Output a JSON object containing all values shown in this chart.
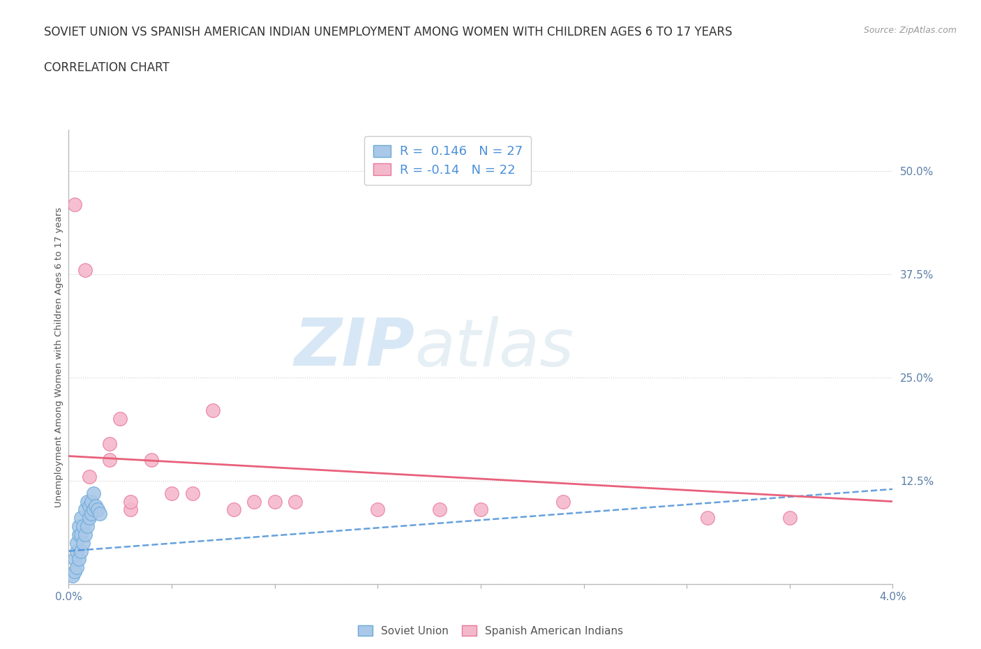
{
  "title_line1": "SOVIET UNION VS SPANISH AMERICAN INDIAN UNEMPLOYMENT AMONG WOMEN WITH CHILDREN AGES 6 TO 17 YEARS",
  "title_line2": "CORRELATION CHART",
  "source": "Source: ZipAtlas.com",
  "ylabel": "Unemployment Among Women with Children Ages 6 to 17 years",
  "xlim": [
    0.0,
    0.04
  ],
  "ylim": [
    0.0,
    0.55
  ],
  "xticks": [
    0.0,
    0.005,
    0.01,
    0.015,
    0.02,
    0.025,
    0.03,
    0.035,
    0.04
  ],
  "xticklabels": [
    "0.0%",
    "",
    "",
    "",
    "",
    "",
    "",
    "",
    "4.0%"
  ],
  "ytick_positions": [
    0.0,
    0.125,
    0.25,
    0.375,
    0.5
  ],
  "ytick_labels": [
    "",
    "12.5%",
    "25.0%",
    "37.5%",
    "50.0%"
  ],
  "grid_color": "#cccccc",
  "background_color": "#ffffff",
  "watermark_zip": "ZIP",
  "watermark_atlas": "atlas",
  "soviet_union_color": "#aac8e8",
  "soviet_union_border": "#6aaad8",
  "spanish_color": "#f4b8cc",
  "spanish_border": "#e87898",
  "soviet_R": 0.146,
  "soviet_N": 27,
  "spanish_R": -0.14,
  "spanish_N": 22,
  "soviet_line_color": "#4a90d9",
  "spanish_line_color": "#e8607a",
  "legend_label_soviet": "Soviet Union",
  "legend_label_spanish": "Spanish American Indians",
  "soviet_x": [
    0.0002,
    0.0003,
    0.0003,
    0.0004,
    0.0004,
    0.0004,
    0.0005,
    0.0005,
    0.0005,
    0.0006,
    0.0006,
    0.0006,
    0.0007,
    0.0007,
    0.0008,
    0.0008,
    0.0009,
    0.0009,
    0.001,
    0.001,
    0.0011,
    0.0011,
    0.0012,
    0.0012,
    0.0013,
    0.0014,
    0.0015
  ],
  "soviet_y": [
    0.01,
    0.015,
    0.03,
    0.02,
    0.04,
    0.05,
    0.03,
    0.06,
    0.07,
    0.04,
    0.06,
    0.08,
    0.05,
    0.07,
    0.06,
    0.09,
    0.07,
    0.1,
    0.08,
    0.095,
    0.085,
    0.1,
    0.09,
    0.11,
    0.095,
    0.09,
    0.085
  ],
  "spanish_x": [
    0.0003,
    0.0008,
    0.001,
    0.002,
    0.002,
    0.0025,
    0.003,
    0.003,
    0.004,
    0.005,
    0.006,
    0.007,
    0.008,
    0.009,
    0.01,
    0.011,
    0.015,
    0.018,
    0.02,
    0.024,
    0.031,
    0.035
  ],
  "spanish_y": [
    0.46,
    0.38,
    0.13,
    0.15,
    0.17,
    0.2,
    0.09,
    0.1,
    0.15,
    0.11,
    0.11,
    0.21,
    0.09,
    0.1,
    0.1,
    0.1,
    0.09,
    0.09,
    0.09,
    0.1,
    0.08,
    0.08
  ],
  "su_line_x0": 0.0,
  "su_line_x1": 0.04,
  "su_line_y0": 0.04,
  "su_line_y1": 0.115,
  "sp_line_x0": 0.0,
  "sp_line_x1": 0.04,
  "sp_line_y0": 0.155,
  "sp_line_y1": 0.1
}
